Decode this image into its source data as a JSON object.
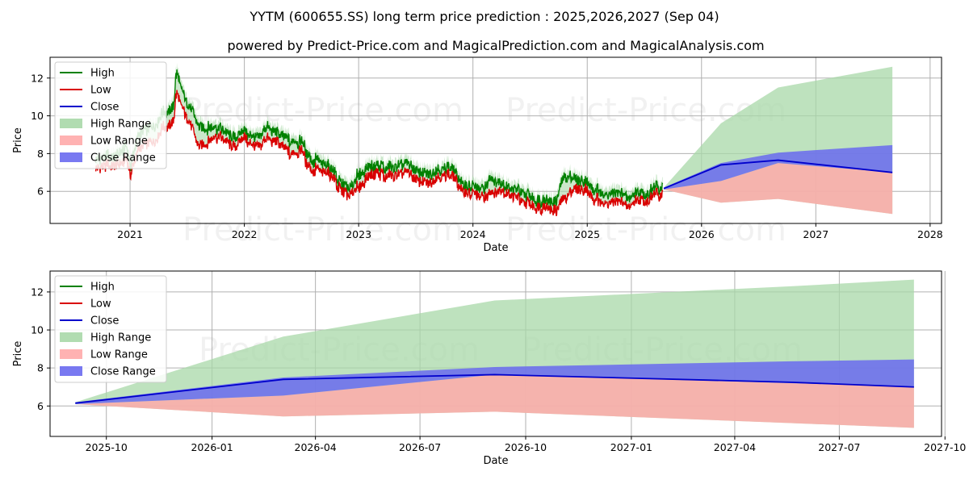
{
  "title": "YYTM (600655.SS) long term price prediction : 2025,2026,2027 (Sep 04)",
  "subtitle": "powered by Predict-Price.com and MagicalPrediction.com and MagicalAnalysis.com",
  "watermark": "Predict-Price.com",
  "colors": {
    "high": "#008000",
    "low": "#d90000",
    "close": "#0000cc",
    "high_range": "#a8d8a8",
    "low_range": "#ffaaaa",
    "close_range": "#6a6af0"
  },
  "chart_data": [
    {
      "type": "line",
      "xlabel": "Date",
      "ylabel": "Price",
      "xlim": [
        2020.3,
        2028.1
      ],
      "ylim": [
        4.3,
        13.1
      ],
      "x_ticks": [
        2021,
        2022,
        2023,
        2024,
        2025,
        2026,
        2027,
        2028
      ],
      "x_tick_labels": [
        "2021",
        "2022",
        "2023",
        "2024",
        "2025",
        "2026",
        "2027",
        "2028"
      ],
      "y_ticks": [
        6,
        8,
        10,
        12
      ],
      "y_tick_labels": [
        "6",
        "8",
        "10",
        "12"
      ],
      "grid": true,
      "legend_position": "top-left",
      "legend": [
        "High",
        "Low",
        "Close",
        "High Range",
        "Low Range",
        "Close Range"
      ],
      "history_keypoints": {
        "x": [
          2020.7,
          2020.85,
          2020.97,
          2021.0,
          2021.08,
          2021.2,
          2021.3,
          2021.38,
          2021.4,
          2021.5,
          2021.6,
          2021.75,
          2021.9,
          2022.0,
          2022.1,
          2022.2,
          2022.3,
          2022.4,
          2022.5,
          2022.55,
          2022.65,
          2022.75,
          2022.85,
          2022.95,
          2023.0,
          2023.15,
          2023.3,
          2023.4,
          2023.5,
          2023.6,
          2023.7,
          2023.8,
          2023.85,
          2023.9,
          2024.0,
          2024.1,
          2024.15,
          2024.25,
          2024.35,
          2024.45,
          2024.55,
          2024.65,
          2024.72,
          2024.8,
          2024.9,
          2024.98,
          2025.05,
          2025.2,
          2025.35,
          2025.5,
          2025.6,
          2025.66
        ],
        "low": [
          7.4,
          7.3,
          7.6,
          6.9,
          8.2,
          8.7,
          9.4,
          9.6,
          11.3,
          9.9,
          8.4,
          8.9,
          8.4,
          8.8,
          8.2,
          8.8,
          8.5,
          7.9,
          8.2,
          7.4,
          7.0,
          6.9,
          6.0,
          5.8,
          6.3,
          6.9,
          6.8,
          7.1,
          6.6,
          6.4,
          6.9,
          6.9,
          6.7,
          6.0,
          5.9,
          5.6,
          6.0,
          6.0,
          5.7,
          5.4,
          5.2,
          5.1,
          4.9,
          5.7,
          6.0,
          6.2,
          5.6,
          5.4,
          5.3,
          5.6,
          5.7,
          6.0
        ],
        "high": [
          7.8,
          7.7,
          8.2,
          7.3,
          8.9,
          9.4,
          10.1,
          10.3,
          12.3,
          10.6,
          9.4,
          9.3,
          8.8,
          9.1,
          8.6,
          9.3,
          8.9,
          8.5,
          8.6,
          7.9,
          7.4,
          7.2,
          6.3,
          6.1,
          6.9,
          7.2,
          7.2,
          7.5,
          7.0,
          6.8,
          7.2,
          7.2,
          7.0,
          6.3,
          6.2,
          6.0,
          6.7,
          6.3,
          6.0,
          5.8,
          5.5,
          5.4,
          5.3,
          6.8,
          6.4,
          6.6,
          6.0,
          5.8,
          5.7,
          5.9,
          6.0,
          6.3
        ]
      },
      "forecast": {
        "x": [
          2025.67,
          2026.17,
          2026.67,
          2027.67
        ],
        "close": [
          6.15,
          7.4,
          7.65,
          7.0
        ],
        "high_range_upper": [
          6.2,
          9.6,
          11.5,
          12.6
        ],
        "high_range_lower": [
          6.1,
          5.4,
          5.6,
          4.8
        ],
        "close_range_upper": [
          6.2,
          7.5,
          8.05,
          8.45
        ],
        "close_range_lower": [
          6.1,
          6.55,
          7.5,
          7.0
        ]
      }
    },
    {
      "type": "area",
      "xlabel": "Date",
      "ylabel": "Price",
      "xlim": [
        "2025-08-13",
        "2027-09-28"
      ],
      "ylim": [
        4.4,
        13.1
      ],
      "x_ticks": [
        "2025-10-01",
        "2026-01-01",
        "2026-04-01",
        "2026-07-01",
        "2026-10-01",
        "2027-01-01",
        "2027-04-01",
        "2027-07-01",
        "2027-10-01"
      ],
      "x_tick_labels": [
        "2025-10",
        "2026-01",
        "2026-04",
        "2026-07",
        "2026-10",
        "2027-01",
        "2027-04",
        "2027-07",
        "2027-10"
      ],
      "y_ticks": [
        6,
        8,
        10,
        12
      ],
      "y_tick_labels": [
        "6",
        "8",
        "10",
        "12"
      ],
      "grid": true,
      "legend_position": "top-left",
      "legend": [
        "High",
        "Low",
        "Close",
        "High Range",
        "Low Range",
        "Close Range"
      ],
      "x": [
        "2025-09-04",
        "2026-03-04",
        "2026-09-04",
        "2027-05-20",
        "2027-09-04"
      ],
      "close": [
        6.15,
        7.4,
        7.65,
        7.25,
        7.0
      ],
      "high_range_upper": [
        6.2,
        9.65,
        11.55,
        12.3,
        12.65
      ],
      "high_range_lower": [
        6.1,
        5.45,
        5.7,
        5.1,
        4.85
      ],
      "close_range_upper": [
        6.2,
        7.5,
        8.05,
        8.35,
        8.45
      ],
      "close_range_lower": [
        6.1,
        6.55,
        7.65,
        7.2,
        7.0
      ]
    }
  ]
}
